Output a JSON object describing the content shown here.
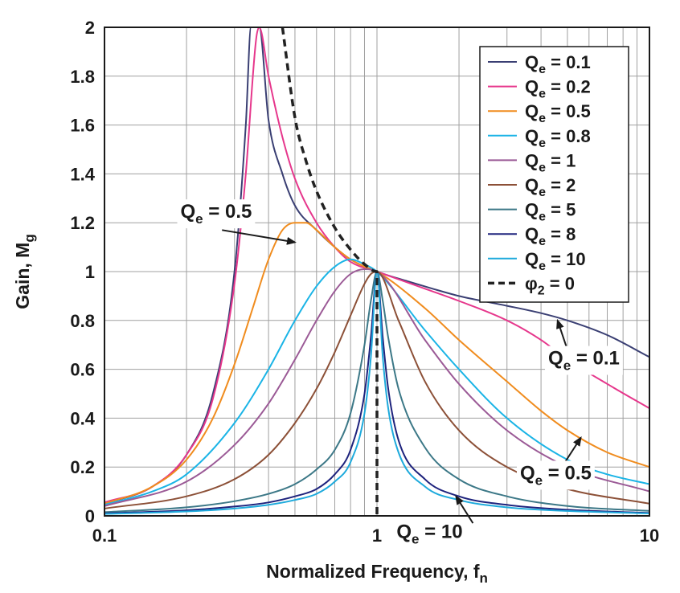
{
  "chart_data": {
    "type": "line",
    "xlabel": "Normalized Frequency, f",
    "xlabel_sub": "n",
    "ylabel": "Gain, M",
    "ylabel_sub": "g",
    "xscale": "log",
    "xlim": [
      0.1,
      10
    ],
    "ylim": [
      0,
      2
    ],
    "grid": true,
    "legend_position": "top-right",
    "x_ticks": [
      {
        "value": 0.1,
        "label": "0.1"
      },
      {
        "value": 1,
        "label": "1"
      },
      {
        "value": 10,
        "label": "10"
      }
    ],
    "y_ticks": [
      {
        "value": 0,
        "label": "0"
      },
      {
        "value": 0.2,
        "label": "0.2"
      },
      {
        "value": 0.4,
        "label": "0.4"
      },
      {
        "value": 0.6,
        "label": "0.6"
      },
      {
        "value": 0.8,
        "label": "0.8"
      },
      {
        "value": 1,
        "label": "1"
      },
      {
        "value": 1.2,
        "label": "1.2"
      },
      {
        "value": 1.4,
        "label": "1.4"
      },
      {
        "value": 1.6,
        "label": "1.6"
      },
      {
        "value": 1.8,
        "label": "1.8"
      },
      {
        "value": 2,
        "label": "2"
      }
    ],
    "series": [
      {
        "name_main": "Q",
        "name_sub": "e",
        "name_rest": " = 0.1",
        "color": "#3a3f73",
        "dashed": false,
        "x": [
          0.1,
          0.15,
          0.2,
          0.25,
          0.3,
          0.33,
          0.345,
          0.37,
          0.4,
          0.45,
          0.5,
          0.6,
          0.7,
          0.8,
          1,
          1.3,
          1.6,
          2,
          3,
          4,
          5,
          7,
          10
        ],
        "y": [
          0.05,
          0.12,
          0.25,
          0.5,
          1.0,
          1.6,
          2.0,
          2.0,
          1.62,
          1.4,
          1.27,
          1.17,
          1.1,
          1.05,
          1.0,
          0.96,
          0.93,
          0.9,
          0.86,
          0.83,
          0.8,
          0.74,
          0.65
        ]
      },
      {
        "name_main": "Q",
        "name_sub": "e",
        "name_rest": " = 0.2",
        "color": "#e6378c",
        "dashed": false,
        "x": [
          0.1,
          0.15,
          0.2,
          0.25,
          0.3,
          0.33,
          0.36,
          0.37,
          0.4,
          0.45,
          0.5,
          0.6,
          0.7,
          0.8,
          1,
          1.5,
          2,
          3,
          4,
          5,
          7,
          10
        ],
        "y": [
          0.055,
          0.12,
          0.25,
          0.48,
          0.95,
          1.4,
          1.95,
          2.0,
          1.8,
          1.55,
          1.38,
          1.2,
          1.1,
          1.04,
          1.0,
          0.93,
          0.88,
          0.8,
          0.72,
          0.64,
          0.54,
          0.44
        ]
      },
      {
        "name_main": "Q",
        "name_sub": "e",
        "name_rest": " = 0.5",
        "color": "#f08c1e",
        "dashed": false,
        "x": [
          0.1,
          0.15,
          0.2,
          0.25,
          0.3,
          0.35,
          0.4,
          0.45,
          0.5,
          0.55,
          0.6,
          0.7,
          0.8,
          0.9,
          1,
          1.5,
          2,
          3,
          4,
          5,
          7,
          10
        ],
        "y": [
          0.05,
          0.12,
          0.23,
          0.4,
          0.62,
          0.85,
          1.05,
          1.17,
          1.2,
          1.2,
          1.17,
          1.1,
          1.05,
          1.02,
          1.0,
          0.85,
          0.72,
          0.55,
          0.43,
          0.35,
          0.26,
          0.2
        ]
      },
      {
        "name_main": "Q",
        "name_sub": "e",
        "name_rest": " = 0.8",
        "color": "#1ab4e6",
        "dashed": false,
        "x": [
          0.1,
          0.15,
          0.2,
          0.3,
          0.4,
          0.5,
          0.6,
          0.7,
          0.8,
          0.9,
          1,
          1.5,
          2,
          3,
          5,
          7,
          10
        ],
        "y": [
          0.045,
          0.1,
          0.17,
          0.38,
          0.6,
          0.8,
          0.94,
          1.02,
          1.05,
          1.03,
          1.0,
          0.76,
          0.6,
          0.4,
          0.23,
          0.17,
          0.13
        ]
      },
      {
        "name_main": "Q",
        "name_sub": "e",
        "name_rest": " = 1",
        "color": "#9b5a96",
        "dashed": false,
        "x": [
          0.1,
          0.2,
          0.3,
          0.4,
          0.5,
          0.6,
          0.7,
          0.8,
          0.9,
          1,
          1.5,
          2,
          3,
          5,
          10
        ],
        "y": [
          0.04,
          0.14,
          0.29,
          0.46,
          0.64,
          0.8,
          0.92,
          0.99,
          1.01,
          1.0,
          0.72,
          0.54,
          0.35,
          0.2,
          0.1
        ]
      },
      {
        "name_main": "Q",
        "name_sub": "e",
        "name_rest": " = 2",
        "color": "#8c5037",
        "dashed": false,
        "x": [
          0.1,
          0.2,
          0.3,
          0.4,
          0.5,
          0.6,
          0.7,
          0.8,
          0.9,
          0.95,
          1,
          1.2,
          1.5,
          2,
          3,
          5,
          10
        ],
        "y": [
          0.03,
          0.08,
          0.15,
          0.25,
          0.38,
          0.52,
          0.67,
          0.82,
          0.95,
          0.99,
          1.0,
          0.8,
          0.55,
          0.35,
          0.2,
          0.11,
          0.05
        ]
      },
      {
        "name_main": "Q",
        "name_sub": "e",
        "name_rest": " = 5",
        "color": "#3c7887",
        "dashed": false,
        "x": [
          0.1,
          0.2,
          0.3,
          0.4,
          0.5,
          0.6,
          0.7,
          0.8,
          0.9,
          0.95,
          1,
          1.05,
          1.1,
          1.2,
          1.5,
          2,
          3,
          5,
          10
        ],
        "y": [
          0.015,
          0.035,
          0.06,
          0.09,
          0.13,
          0.19,
          0.27,
          0.42,
          0.7,
          0.88,
          1.0,
          0.88,
          0.73,
          0.52,
          0.28,
          0.15,
          0.08,
          0.04,
          0.02
        ]
      },
      {
        "name_main": "Q",
        "name_sub": "e",
        "name_rest": " = 8",
        "color": "#1e237d",
        "dashed": false,
        "x": [
          0.1,
          0.2,
          0.3,
          0.4,
          0.5,
          0.6,
          0.7,
          0.8,
          0.9,
          0.95,
          1,
          1.05,
          1.1,
          1.2,
          1.5,
          2,
          3,
          5,
          10
        ],
        "y": [
          0.01,
          0.023,
          0.038,
          0.055,
          0.08,
          0.11,
          0.17,
          0.27,
          0.5,
          0.73,
          1.0,
          0.73,
          0.52,
          0.31,
          0.15,
          0.08,
          0.045,
          0.025,
          0.012
        ]
      },
      {
        "name_main": "Q",
        "name_sub": "e",
        "name_rest": " = 10",
        "color": "#1eaadc",
        "dashed": false,
        "x": [
          0.1,
          0.2,
          0.3,
          0.4,
          0.5,
          0.6,
          0.7,
          0.8,
          0.9,
          0.95,
          1,
          1.05,
          1.1,
          1.2,
          1.5,
          2,
          3,
          5,
          10
        ],
        "y": [
          0.008,
          0.018,
          0.03,
          0.045,
          0.065,
          0.09,
          0.14,
          0.22,
          0.42,
          0.65,
          1.0,
          0.65,
          0.44,
          0.26,
          0.12,
          0.065,
          0.035,
          0.02,
          0.01
        ]
      },
      {
        "name_main": "φ",
        "name_sub": "2",
        "name_rest": " = 0",
        "color": "#222222",
        "dashed": true,
        "x": [
          0.45,
          0.5,
          0.55,
          0.6,
          0.7,
          0.8,
          0.9,
          1,
          1
        ],
        "y": [
          2.0,
          1.63,
          1.45,
          1.33,
          1.18,
          1.09,
          1.03,
          1.0,
          0
        ]
      }
    ],
    "annotations": [
      {
        "main": "Q",
        "sub": "e",
        "rest": " = 0.5",
        "text_at": [
          0.19,
          1.22
        ],
        "arrow_from": [
          0.27,
          1.17
        ],
        "arrow_to": [
          0.5,
          1.12
        ]
      },
      {
        "main": "Q",
        "sub": "e",
        "rest": " = 0.1",
        "text_at": [
          4.25,
          0.62
        ],
        "arrow_from": [
          5.0,
          0.68
        ],
        "arrow_to": [
          4.6,
          0.8
        ]
      },
      {
        "main": "Q",
        "sub": "e",
        "rest": " = 0.5",
        "text_at": [
          3.35,
          0.15
        ],
        "arrow_from": [
          4.9,
          0.22
        ],
        "arrow_to": [
          5.6,
          0.32
        ]
      },
      {
        "main": "Q",
        "sub": "e",
        "rest": " = 10",
        "text_at": [
          1.18,
          -0.09
        ],
        "arrow_from": [
          2.25,
          -0.03
        ],
        "arrow_to": [
          1.95,
          0.08
        ]
      }
    ]
  }
}
